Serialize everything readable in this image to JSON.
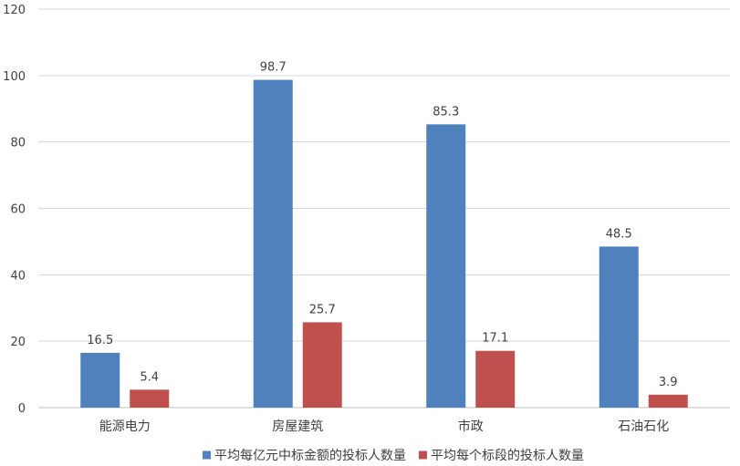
{
  "chart_data": {
    "type": "bar",
    "title": "",
    "xlabel": "",
    "ylabel": "",
    "categories": [
      "能源电力",
      "房屋建筑",
      "市政",
      "石油石化"
    ],
    "series": [
      {
        "name": "平均每亿元中标金额的投标人数量",
        "values": [
          16.5,
          98.7,
          85.3,
          48.5
        ],
        "color": "#4F81BD"
      },
      {
        "name": "平均每个标段的投标人数量",
        "values": [
          5.4,
          25.7,
          17.1,
          3.9
        ],
        "color": "#C0504D"
      }
    ],
    "ylim": [
      0,
      120
    ],
    "yticks": [
      0,
      20,
      40,
      60,
      80,
      100,
      120
    ],
    "grid": true,
    "data_labels": true,
    "legend_position": "bottom",
    "gridline_color": "#D9D9D9",
    "axis_color": "#BFBFBF"
  }
}
